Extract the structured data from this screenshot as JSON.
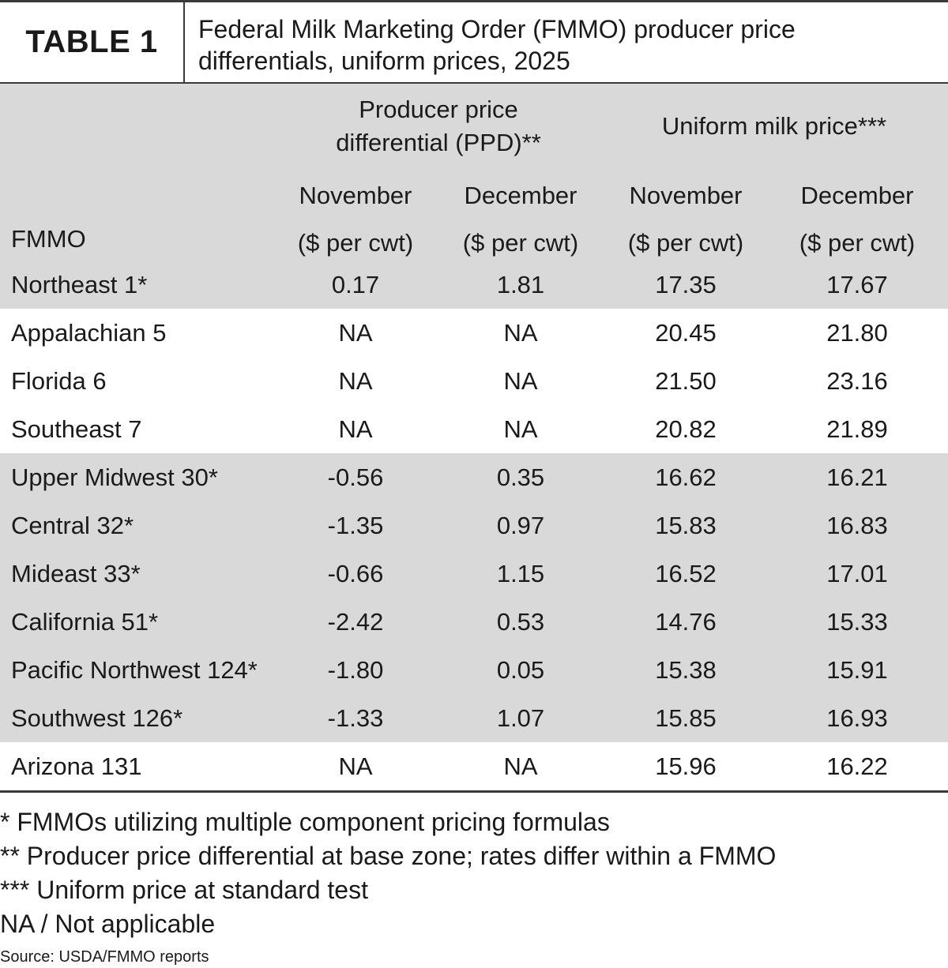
{
  "table_label": "TABLE 1",
  "title_line1": "Federal Milk Marketing Order (FMMO) producer price",
  "title_line2": "differentials, uniform prices, 2025",
  "header": {
    "ppd_line1": "Producer price",
    "ppd_line2": "differential (PPD)**",
    "uniform": "Uniform milk price***",
    "fmmo": "FMMO",
    "november": "November",
    "december": "December",
    "unit": "($ per cwt)"
  },
  "rows": [
    {
      "name": "Northeast 1*",
      "ppd_nov": "0.17",
      "ppd_dec": "1.81",
      "uni_nov": "17.35",
      "uni_dec": "17.67"
    },
    {
      "name": "Appalachian 5",
      "ppd_nov": "NA",
      "ppd_dec": "NA",
      "uni_nov": "20.45",
      "uni_dec": "21.80"
    },
    {
      "name": "Florida 6",
      "ppd_nov": "NA",
      "ppd_dec": "NA",
      "uni_nov": "21.50",
      "uni_dec": "23.16"
    },
    {
      "name": "Southeast 7",
      "ppd_nov": "NA",
      "ppd_dec": "NA",
      "uni_nov": "20.82",
      "uni_dec": "21.89"
    },
    {
      "name": "Upper Midwest 30*",
      "ppd_nov": "-0.56",
      "ppd_dec": "0.35",
      "uni_nov": "16.62",
      "uni_dec": "16.21"
    },
    {
      "name": "Central 32*",
      "ppd_nov": "-1.35",
      "ppd_dec": "0.97",
      "uni_nov": "15.83",
      "uni_dec": "16.83"
    },
    {
      "name": "Mideast 33*",
      "ppd_nov": "-0.66",
      "ppd_dec": "1.15",
      "uni_nov": "16.52",
      "uni_dec": "17.01"
    },
    {
      "name": "California 51*",
      "ppd_nov": "-2.42",
      "ppd_dec": "0.53",
      "uni_nov": "14.76",
      "uni_dec": "15.33"
    },
    {
      "name": "Pacific Northwest 124*",
      "ppd_nov": "-1.80",
      "ppd_dec": "0.05",
      "uni_nov": "15.38",
      "uni_dec": "15.91"
    },
    {
      "name": "Southwest 126*",
      "ppd_nov": "-1.33",
      "ppd_dec": "1.07",
      "uni_nov": "15.85",
      "uni_dec": "16.93"
    },
    {
      "name": "Arizona 131",
      "ppd_nov": "NA",
      "ppd_dec": "NA",
      "uni_nov": "15.96",
      "uni_dec": "16.22"
    }
  ],
  "notes": [
    "* FMMOs utilizing multiple component pricing formulas",
    "** Producer price differential at base zone; rates differ within a FMMO",
    "*** Uniform price at standard test",
    "NA / Not applicable"
  ],
  "source": "Source: USDA/FMMO reports"
}
